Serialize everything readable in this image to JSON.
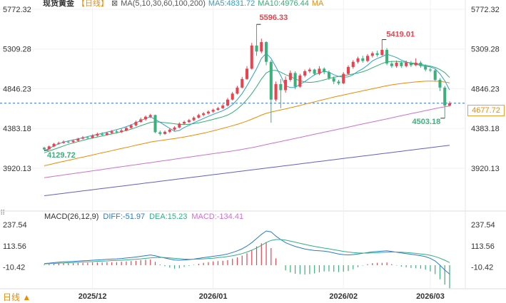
{
  "header": {
    "instrument": "现货黄金",
    "period_tag": "【日线】",
    "ma_label": "MA(5,10,30,60,100,200)",
    "ma5": "MA5:4831.72",
    "ma10": "MA10:4976.44",
    "ma_more": "MA"
  },
  "macd_header": {
    "label": "MACD(26,12,9)",
    "diff": "DIFF:-51.97",
    "dea": "DEA:15.23",
    "macd": "MACD:-134.41"
  },
  "current_price": "4677.72",
  "period_selector": "日线 ▲",
  "colors": {
    "up": "#e8434f",
    "down": "#3cb07a",
    "ma5": "#2aa0c8",
    "ma10": "#30b070",
    "ma30": "#f08a00",
    "ma60": "#d070d0",
    "ma100": "#6060c8",
    "price_line": "#2f6fd0",
    "diff": "#2a7ad0",
    "dea": "#30b080"
  },
  "chart_data": {
    "type": "candlestick",
    "price_axis": {
      "ticks": [
        5772.32,
        5309.28,
        4846.23,
        4383.18,
        3920.13
      ],
      "ylim": [
        3800,
        5800
      ]
    },
    "macd_axis": {
      "ticks": [
        237.54,
        113.56,
        -10.42
      ],
      "ylim": [
        -160,
        290
      ]
    },
    "x_labels": [
      "2025/12",
      "2026/01",
      "2026/02",
      "2026/03"
    ],
    "annotations": {
      "high1": "5596.33",
      "high2": "5419.01",
      "low_recent": "4503.18",
      "low_start": "4129.72"
    },
    "candles": [
      [
        4160,
        4140,
        4170,
        4129.72
      ],
      [
        4140,
        4175,
        4185,
        4135
      ],
      [
        4175,
        4205,
        4215,
        4165
      ],
      [
        4205,
        4215,
        4230,
        4195
      ],
      [
        4215,
        4230,
        4245,
        4205
      ],
      [
        4230,
        4225,
        4245,
        4210
      ],
      [
        4225,
        4240,
        4255,
        4215
      ],
      [
        4240,
        4265,
        4275,
        4230
      ],
      [
        4265,
        4280,
        4295,
        4255
      ],
      [
        4280,
        4275,
        4295,
        4262
      ],
      [
        4275,
        4300,
        4315,
        4265
      ],
      [
        4300,
        4320,
        4335,
        4290
      ],
      [
        4320,
        4310,
        4340,
        4295
      ],
      [
        4310,
        4330,
        4345,
        4300
      ],
      [
        4330,
        4350,
        4365,
        4320
      ],
      [
        4350,
        4340,
        4370,
        4325
      ],
      [
        4340,
        4360,
        4380,
        4330
      ],
      [
        4360,
        4390,
        4400,
        4350
      ],
      [
        4390,
        4420,
        4435,
        4380
      ],
      [
        4420,
        4460,
        4475,
        4410
      ],
      [
        4460,
        4490,
        4510,
        4450
      ],
      [
        4490,
        4520,
        4535,
        4475
      ],
      [
        4520,
        4540,
        4555,
        4505
      ],
      [
        4540,
        4340,
        4545,
        4330
      ],
      [
        4340,
        4320,
        4360,
        4300
      ],
      [
        4320,
        4345,
        4360,
        4310
      ],
      [
        4345,
        4370,
        4385,
        4330
      ],
      [
        4370,
        4395,
        4410,
        4355
      ],
      [
        4395,
        4440,
        4455,
        4385
      ],
      [
        4440,
        4460,
        4475,
        4425
      ],
      [
        4460,
        4480,
        4495,
        4445
      ],
      [
        4480,
        4510,
        4525,
        4470
      ],
      [
        4510,
        4540,
        4555,
        4500
      ],
      [
        4540,
        4560,
        4575,
        4525
      ],
      [
        4560,
        4580,
        4595,
        4545
      ],
      [
        4580,
        4600,
        4615,
        4565
      ],
      [
        4600,
        4620,
        4635,
        4590
      ],
      [
        4620,
        4650,
        4670,
        4610
      ],
      [
        4650,
        4720,
        4740,
        4640
      ],
      [
        4720,
        4790,
        4810,
        4710
      ],
      [
        4790,
        4860,
        4880,
        4780
      ],
      [
        4860,
        4960,
        4985,
        4850
      ],
      [
        4960,
        5080,
        5110,
        4950
      ],
      [
        5080,
        5350,
        5380,
        5070
      ],
      [
        5350,
        5280,
        5596.33,
        5230
      ],
      [
        5280,
        5390,
        5430,
        5260
      ],
      [
        5390,
        5160,
        5400,
        5120
      ],
      [
        5160,
        4720,
        5180,
        4450
      ],
      [
        4720,
        4900,
        4930,
        4700
      ],
      [
        4900,
        4830,
        4960,
        4620
      ],
      [
        4830,
        4950,
        4990,
        4800
      ],
      [
        4950,
        5030,
        5060,
        4930
      ],
      [
        5030,
        4870,
        5050,
        4840
      ],
      [
        4870,
        5000,
        5020,
        4860
      ],
      [
        5000,
        5050,
        5070,
        4980
      ],
      [
        5050,
        5070,
        5090,
        5030
      ],
      [
        5070,
        5020,
        5080,
        5000
      ],
      [
        5020,
        5080,
        5110,
        5005
      ],
      [
        5080,
        5040,
        5095,
        5015
      ],
      [
        5040,
        4970,
        5060,
        4950
      ],
      [
        4970,
        4930,
        4990,
        4900
      ],
      [
        4930,
        4910,
        4950,
        4890
      ],
      [
        4910,
        5020,
        5040,
        4900
      ],
      [
        5020,
        5100,
        5120,
        5005
      ],
      [
        5100,
        5160,
        5180,
        5080
      ],
      [
        5160,
        5200,
        5220,
        5140
      ],
      [
        5200,
        5170,
        5230,
        5150
      ],
      [
        5170,
        5230,
        5250,
        5155
      ],
      [
        5230,
        5260,
        5280,
        5210
      ],
      [
        5260,
        5240,
        5290,
        5220
      ],
      [
        5240,
        5300,
        5419.01,
        5230
      ],
      [
        5300,
        5140,
        5320,
        5120
      ],
      [
        5140,
        5110,
        5170,
        5090
      ],
      [
        5110,
        5150,
        5175,
        5090
      ],
      [
        5150,
        5110,
        5170,
        5090
      ],
      [
        5110,
        5150,
        5175,
        5095
      ],
      [
        5150,
        5120,
        5170,
        5100
      ],
      [
        5120,
        5150,
        5200,
        5110
      ],
      [
        5150,
        5110,
        5170,
        5090
      ],
      [
        5110,
        5070,
        5130,
        5050
      ],
      [
        5070,
        5060,
        5090,
        5040
      ],
      [
        5060,
        4950,
        5075,
        4930
      ],
      [
        4950,
        4860,
        4970,
        4820
      ],
      [
        4860,
        4650,
        4880,
        4503.18
      ],
      [
        4650,
        4677.72,
        4700,
        4640
      ]
    ],
    "ma5": [
      4120,
      4150,
      4180,
      4205,
      4225,
      4238,
      4250,
      4262,
      4275,
      4290,
      4302,
      4315,
      4326,
      4340,
      4355,
      4370,
      4385,
      4405,
      4425,
      4450,
      4476,
      4500,
      4520,
      4490,
      4455,
      4420,
      4385,
      4350,
      4360,
      4395,
      4420,
      4450,
      4475,
      4500,
      4525,
      4548,
      4570,
      4590,
      4620,
      4660,
      4720,
      4790,
      4880,
      4980,
      5080,
      5200,
      5260,
      5200,
      5100,
      5000,
      4880,
      4860,
      4860,
      4900,
      4930,
      4970,
      5010,
      5030,
      5050,
      5040,
      5010,
      4990,
      4980,
      4985,
      5010,
      5050,
      5080,
      5120,
      5170,
      5200,
      5220,
      5250,
      5230,
      5210,
      5180,
      5160,
      5140,
      5130,
      5120,
      5110,
      5100,
      5080,
      5020,
      4940,
      4831.72
    ],
    "ma10": [
      4100,
      4120,
      4140,
      4160,
      4180,
      4200,
      4215,
      4230,
      4245,
      4260,
      4272,
      4285,
      4296,
      4308,
      4320,
      4332,
      4345,
      4360,
      4375,
      4395,
      4415,
      4435,
      4455,
      4460,
      4458,
      4452,
      4445,
      4438,
      4432,
      4430,
      4432,
      4440,
      4450,
      4462,
      4476,
      4490,
      4505,
      4520,
      4540,
      4570,
      4610,
      4660,
      4720,
      4790,
      4870,
      4960,
      5030,
      5060,
      5060,
      5040,
      5010,
      4990,
      4960,
      4940,
      4925,
      4920,
      4925,
      4935,
      4950,
      4965,
      4980,
      4990,
      5000,
      5008,
      5018,
      5030,
      5045,
      5065,
      5090,
      5115,
      5140,
      5160,
      5165,
      5165,
      5160,
      5155,
      5148,
      5140,
      5130,
      5120,
      5110,
      5095,
      5070,
      5035,
      4976.44
    ],
    "ma30": [
      3950,
      3962,
      3975,
      3988,
      4000,
      4012,
      4025,
      4038,
      4050,
      4062,
      4075,
      4088,
      4100,
      4112,
      4125,
      4138,
      4150,
      4162,
      4175,
      4188,
      4200,
      4212,
      4225,
      4235,
      4242,
      4250,
      4258,
      4266,
      4275,
      4285,
      4295,
      4306,
      4318,
      4330,
      4342,
      4356,
      4370,
      4385,
      4400,
      4416,
      4432,
      4450,
      4470,
      4492,
      4515,
      4540,
      4560,
      4575,
      4588,
      4600,
      4612,
      4625,
      4638,
      4652,
      4666,
      4680,
      4694,
      4708,
      4722,
      4736,
      4750,
      4762,
      4774,
      4786,
      4798,
      4810,
      4822,
      4834,
      4846,
      4858,
      4870,
      4882,
      4892,
      4900,
      4908,
      4914,
      4920,
      4926,
      4930,
      4934,
      4936,
      4936,
      4932,
      4925,
      4915
    ],
    "ma60": [
      3810,
      3818,
      3826,
      3834,
      3842,
      3850,
      3858,
      3866,
      3874,
      3882,
      3890,
      3898,
      3906,
      3914,
      3922,
      3930,
      3938,
      3946,
      3954,
      3962,
      3970,
      3978,
      3986,
      3994,
      4002,
      4010,
      4018,
      4026,
      4034,
      4042,
      4050,
      4058,
      4066,
      4074,
      4082,
      4090,
      4098,
      4106,
      4114,
      4122,
      4130,
      4140,
      4150,
      4160,
      4172,
      4184,
      4196,
      4208,
      4220,
      4232,
      4244,
      4256,
      4268,
      4280,
      4292,
      4304,
      4316,
      4328,
      4340,
      4352,
      4364,
      4376,
      4388,
      4400,
      4412,
      4424,
      4436,
      4448,
      4460,
      4472,
      4484,
      4496,
      4508,
      4520,
      4532,
      4544,
      4556,
      4568,
      4580,
      4592,
      4604,
      4616,
      4626,
      4636,
      4645
    ],
    "ma100": [
      3600,
      3607,
      3614,
      3621,
      3628,
      3635,
      3642,
      3649,
      3656,
      3663,
      3670,
      3677,
      3684,
      3691,
      3698,
      3705,
      3712,
      3719,
      3726,
      3733,
      3740,
      3747,
      3754,
      3761,
      3768,
      3775,
      3782,
      3789,
      3796,
      3803,
      3810,
      3817,
      3824,
      3831,
      3838,
      3845,
      3852,
      3859,
      3866,
      3873,
      3880,
      3887,
      3894,
      3901,
      3908,
      3915,
      3922,
      3929,
      3936,
      3943,
      3950,
      3957,
      3964,
      3971,
      3978,
      3985,
      3992,
      3999,
      4006,
      4013,
      4020,
      4027,
      4034,
      4041,
      4048,
      4055,
      4062,
      4069,
      4076,
      4083,
      4090,
      4097,
      4104,
      4111,
      4118,
      4125,
      4132,
      4139,
      4146,
      4153,
      4160,
      4167,
      4174,
      4181,
      4188
    ],
    "diff": [
      10,
      12,
      15,
      18,
      20,
      21,
      22,
      24,
      26,
      27,
      29,
      31,
      32,
      34,
      36,
      37,
      39,
      42,
      45,
      48,
      52,
      56,
      60,
      55,
      48,
      42,
      36,
      30,
      29,
      31,
      33,
      36,
      40,
      44,
      48,
      52,
      56,
      60,
      66,
      74,
      84,
      96,
      112,
      132,
      156,
      180,
      200,
      195,
      170,
      150,
      132,
      120,
      110,
      102,
      95,
      90,
      86,
      84,
      82,
      78,
      72,
      66,
      62,
      60,
      62,
      66,
      70,
      74,
      78,
      80,
      82,
      84,
      80,
      76,
      72,
      68,
      64,
      60,
      56,
      50,
      40,
      25,
      0,
      -28,
      -51.97
    ],
    "dea": [
      8,
      9,
      10,
      12,
      13,
      15,
      16,
      17,
      19,
      20,
      21,
      23,
      24,
      25,
      27,
      28,
      29,
      31,
      33,
      35,
      37,
      40,
      43,
      45,
      46,
      45,
      43,
      40,
      38,
      36,
      35,
      35,
      36,
      37,
      39,
      41,
      44,
      47,
      51,
      55,
      61,
      68,
      77,
      88,
      101,
      116,
      133,
      145,
      150,
      150,
      147,
      141,
      135,
      128,
      122,
      116,
      110,
      105,
      100,
      96,
      91,
      86,
      81,
      77,
      74,
      72,
      71,
      71,
      72,
      73,
      75,
      76,
      77,
      77,
      76,
      74,
      72,
      69,
      66,
      63,
      58,
      51,
      41,
      29,
      15.23
    ],
    "macd": [
      4,
      6,
      10,
      12,
      14,
      12,
      12,
      14,
      14,
      14,
      16,
      16,
      16,
      18,
      18,
      18,
      20,
      22,
      24,
      26,
      30,
      32,
      34,
      20,
      4,
      -6,
      -14,
      -20,
      -18,
      -10,
      -4,
      2,
      8,
      14,
      18,
      22,
      24,
      26,
      30,
      38,
      46,
      56,
      70,
      88,
      110,
      128,
      134,
      100,
      40,
      0,
      -30,
      -42,
      -50,
      -52,
      -54,
      -52,
      -48,
      -42,
      -36,
      -36,
      -38,
      -40,
      -38,
      -34,
      -24,
      -12,
      -2,
      6,
      12,
      14,
      14,
      16,
      6,
      -2,
      -8,
      -12,
      -16,
      -18,
      -20,
      -26,
      -36,
      -52,
      -82,
      -114,
      -134.41
    ]
  }
}
